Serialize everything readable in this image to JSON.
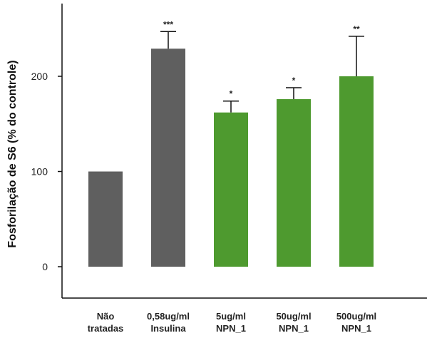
{
  "chart_data": {
    "type": "bar",
    "ylabel": "Fosforilação de S6 (% do controle)",
    "categories": [
      [
        "Não",
        "tratadas"
      ],
      [
        "0,58ug/ml",
        "Insulina"
      ],
      [
        "5ug/ml",
        "NPN_1"
      ],
      [
        "50ug/ml",
        "NPN_1"
      ],
      [
        "500ug/ml",
        "NPN_1"
      ]
    ],
    "values": [
      100,
      229,
      162,
      176,
      200
    ],
    "errors": [
      0,
      18,
      12,
      12,
      42
    ],
    "significance": [
      "",
      "***",
      "*",
      "*",
      "**"
    ],
    "bar_colors": [
      "#5f5f5f",
      "#5f5f5f",
      "#4e9a2f",
      "#4e9a2f",
      "#4e9a2f"
    ],
    "yticks": [
      0,
      100,
      200
    ],
    "ylim": [
      -30,
      270
    ],
    "grid": false,
    "legend": "none"
  }
}
